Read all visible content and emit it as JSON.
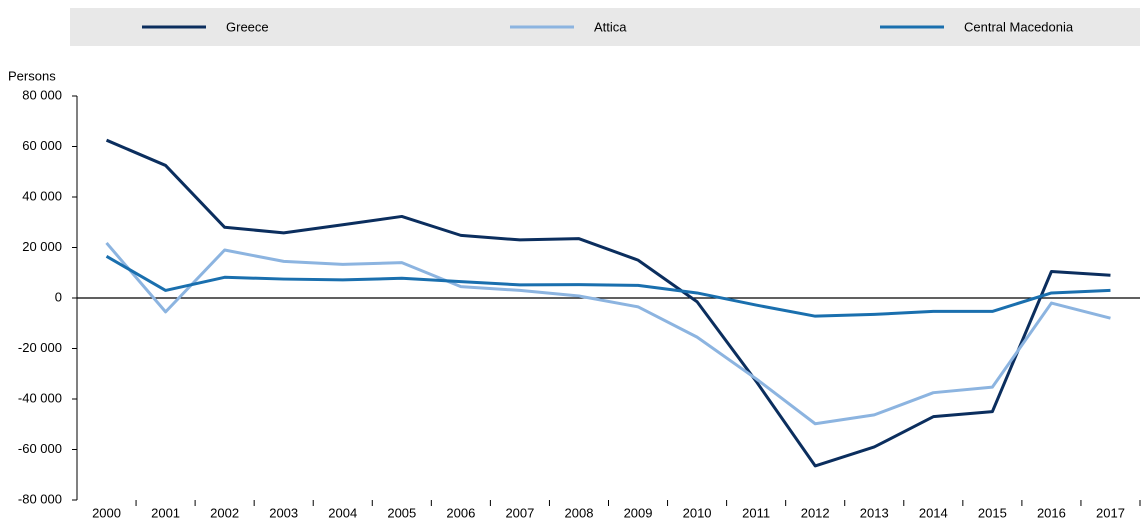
{
  "chart_data": {
    "type": "line",
    "y_axis_label": "Persons",
    "categories": [
      "2000",
      "2001",
      "2002",
      "2003",
      "2004",
      "2005",
      "2006",
      "2007",
      "2008",
      "2009",
      "2010",
      "2011",
      "2012",
      "2013",
      "2014",
      "2015",
      "2016",
      "2017"
    ],
    "series": [
      {
        "name": "Greece",
        "color": "#0b2e5e",
        "values": [
          62500,
          52500,
          28000,
          25800,
          29000,
          32300,
          24800,
          23000,
          23500,
          15000,
          -1500,
          -33000,
          -66500,
          -59000,
          -47000,
          -45000,
          10500,
          9000
        ]
      },
      {
        "name": "Attica",
        "color": "#8cb4e0",
        "values": [
          21800,
          -5500,
          19000,
          14500,
          13300,
          14000,
          4500,
          3000,
          800,
          -3500,
          -15500,
          -32000,
          -49800,
          -46300,
          -37500,
          -35300,
          -2000,
          -8000
        ]
      },
      {
        "name": "Central Macedonia",
        "color": "#1a6fae",
        "values": [
          16500,
          3000,
          8200,
          7500,
          7200,
          7800,
          6500,
          5200,
          5300,
          5000,
          2000,
          -2800,
          -7200,
          -6500,
          -5300,
          -5300,
          2000,
          3000
        ]
      }
    ],
    "ylim": [
      -80000,
      80000
    ],
    "yticks": [
      {
        "value": -80000,
        "label": "-80 000"
      },
      {
        "value": -60000,
        "label": "-60 000"
      },
      {
        "value": -40000,
        "label": "-40 000"
      },
      {
        "value": -20000,
        "label": "-20 000"
      },
      0,
      {
        "value": 20000,
        "label": "20 000"
      },
      {
        "value": 40000,
        "label": "40 000"
      },
      {
        "value": 60000,
        "label": "60 000"
      },
      {
        "value": 80000,
        "label": "80 000"
      }
    ],
    "legend": "top"
  }
}
